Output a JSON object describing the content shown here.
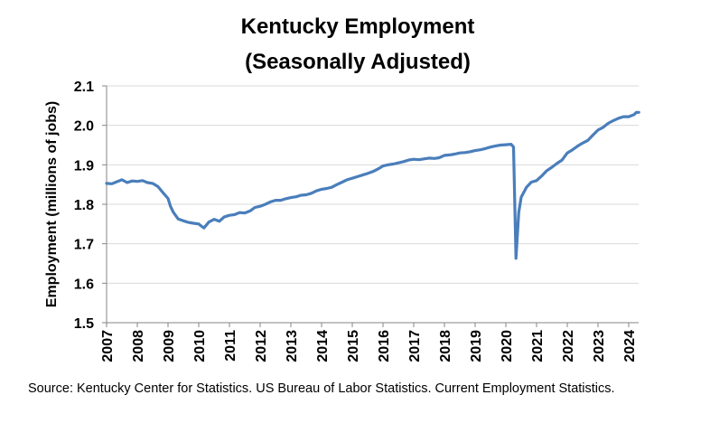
{
  "chart_data": {
    "type": "line",
    "title": [
      "Kentucky Employment",
      "(Seasonally Adjusted)"
    ],
    "xlabel": "",
    "ylabel": "Employment (millions of jobs)",
    "ylim": [
      1.5,
      2.1
    ],
    "xlim": [
      2007,
      2024.3
    ],
    "yticks": [
      "1.5",
      "1.6",
      "1.7",
      "1.8",
      "1.9",
      "2.0",
      "2.1"
    ],
    "ytick_values": [
      1.5,
      1.6,
      1.7,
      1.8,
      1.9,
      2.0,
      2.1
    ],
    "xticks": [
      "2007",
      "2008",
      "2009",
      "2010",
      "2011",
      "2012",
      "2013",
      "2014",
      "2015",
      "2016",
      "2017",
      "2018",
      "2019",
      "2020",
      "2021",
      "2022",
      "2023",
      "2024"
    ],
    "xtick_values": [
      2007,
      2008,
      2009,
      2010,
      2011,
      2012,
      2013,
      2014,
      2015,
      2016,
      2017,
      2018,
      2019,
      2020,
      2021,
      2022,
      2023,
      2024
    ],
    "grid": true,
    "legend": "none",
    "series": [
      {
        "name": "Kentucky Employment",
        "color": "#4a7ebb",
        "points": [
          [
            2007.0,
            1.853
          ],
          [
            2007.17,
            1.852
          ],
          [
            2007.33,
            1.857
          ],
          [
            2007.5,
            1.862
          ],
          [
            2007.67,
            1.855
          ],
          [
            2007.83,
            1.859
          ],
          [
            2008.0,
            1.858
          ],
          [
            2008.17,
            1.86
          ],
          [
            2008.33,
            1.855
          ],
          [
            2008.5,
            1.853
          ],
          [
            2008.67,
            1.845
          ],
          [
            2008.83,
            1.83
          ],
          [
            2009.0,
            1.815
          ],
          [
            2009.08,
            1.795
          ],
          [
            2009.17,
            1.78
          ],
          [
            2009.33,
            1.763
          ],
          [
            2009.5,
            1.758
          ],
          [
            2009.67,
            1.754
          ],
          [
            2009.83,
            1.752
          ],
          [
            2010.0,
            1.75
          ],
          [
            2010.08,
            1.745
          ],
          [
            2010.17,
            1.74
          ],
          [
            2010.33,
            1.755
          ],
          [
            2010.5,
            1.762
          ],
          [
            2010.67,
            1.757
          ],
          [
            2010.83,
            1.768
          ],
          [
            2011.0,
            1.772
          ],
          [
            2011.17,
            1.774
          ],
          [
            2011.33,
            1.779
          ],
          [
            2011.5,
            1.778
          ],
          [
            2011.67,
            1.783
          ],
          [
            2011.83,
            1.792
          ],
          [
            2012.0,
            1.795
          ],
          [
            2012.17,
            1.8
          ],
          [
            2012.33,
            1.806
          ],
          [
            2012.5,
            1.81
          ],
          [
            2012.67,
            1.81
          ],
          [
            2012.83,
            1.814
          ],
          [
            2013.0,
            1.817
          ],
          [
            2013.17,
            1.819
          ],
          [
            2013.33,
            1.823
          ],
          [
            2013.5,
            1.824
          ],
          [
            2013.67,
            1.828
          ],
          [
            2013.83,
            1.834
          ],
          [
            2014.0,
            1.838
          ],
          [
            2014.17,
            1.84
          ],
          [
            2014.33,
            1.843
          ],
          [
            2014.5,
            1.85
          ],
          [
            2014.67,
            1.856
          ],
          [
            2014.83,
            1.862
          ],
          [
            2015.0,
            1.866
          ],
          [
            2015.17,
            1.87
          ],
          [
            2015.33,
            1.874
          ],
          [
            2015.5,
            1.878
          ],
          [
            2015.67,
            1.883
          ],
          [
            2015.83,
            1.889
          ],
          [
            2016.0,
            1.897
          ],
          [
            2016.17,
            1.9
          ],
          [
            2016.33,
            1.902
          ],
          [
            2016.5,
            1.905
          ],
          [
            2016.67,
            1.908
          ],
          [
            2016.83,
            1.912
          ],
          [
            2017.0,
            1.914
          ],
          [
            2017.17,
            1.913
          ],
          [
            2017.33,
            1.915
          ],
          [
            2017.5,
            1.917
          ],
          [
            2017.67,
            1.916
          ],
          [
            2017.83,
            1.918
          ],
          [
            2018.0,
            1.924
          ],
          [
            2018.17,
            1.925
          ],
          [
            2018.33,
            1.927
          ],
          [
            2018.5,
            1.93
          ],
          [
            2018.67,
            1.931
          ],
          [
            2018.83,
            1.933
          ],
          [
            2019.0,
            1.936
          ],
          [
            2019.17,
            1.938
          ],
          [
            2019.33,
            1.941
          ],
          [
            2019.5,
            1.945
          ],
          [
            2019.67,
            1.948
          ],
          [
            2019.83,
            1.95
          ],
          [
            2020.0,
            1.951
          ],
          [
            2020.17,
            1.952
          ],
          [
            2020.25,
            1.945
          ],
          [
            2020.33,
            1.663
          ],
          [
            2020.42,
            1.78
          ],
          [
            2020.5,
            1.818
          ],
          [
            2020.67,
            1.843
          ],
          [
            2020.83,
            1.856
          ],
          [
            2021.0,
            1.86
          ],
          [
            2021.17,
            1.872
          ],
          [
            2021.33,
            1.885
          ],
          [
            2021.5,
            1.894
          ],
          [
            2021.67,
            1.904
          ],
          [
            2021.83,
            1.912
          ],
          [
            2022.0,
            1.93
          ],
          [
            2022.17,
            1.938
          ],
          [
            2022.33,
            1.947
          ],
          [
            2022.5,
            1.955
          ],
          [
            2022.67,
            1.962
          ],
          [
            2022.83,
            1.975
          ],
          [
            2023.0,
            1.988
          ],
          [
            2023.17,
            1.995
          ],
          [
            2023.33,
            2.005
          ],
          [
            2023.5,
            2.012
          ],
          [
            2023.67,
            2.018
          ],
          [
            2023.83,
            2.022
          ],
          [
            2024.0,
            2.022
          ],
          [
            2024.17,
            2.027
          ],
          [
            2024.25,
            2.033
          ],
          [
            2024.33,
            2.033
          ]
        ]
      }
    ]
  },
  "source_note": "Source: Kentucky Center for Statistics. US Bureau of Labor Statistics. Current Employment Statistics."
}
